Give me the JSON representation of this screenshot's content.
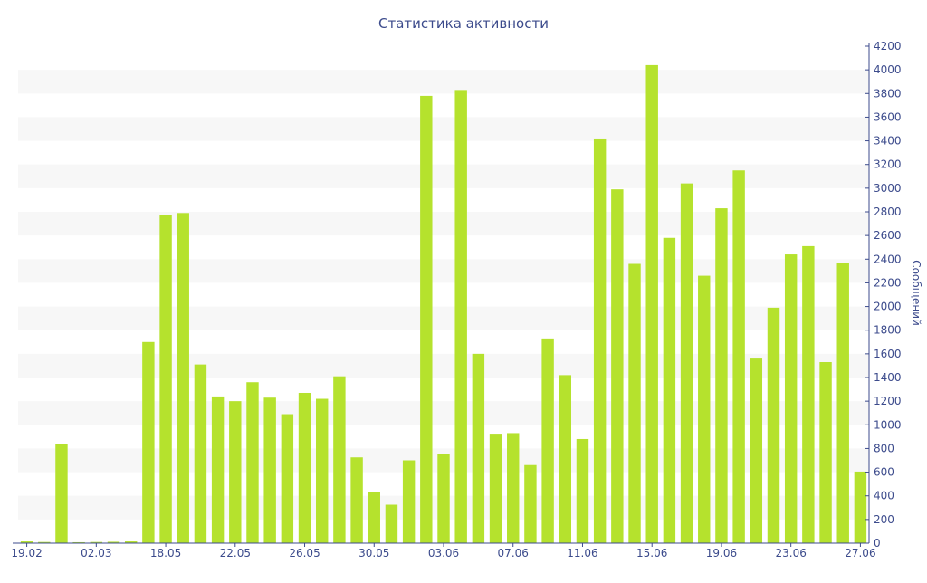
{
  "chart_data": {
    "type": "bar",
    "title": "Статистика активности",
    "ylabel": "Сообщений",
    "xlabel": "",
    "ylim": [
      0,
      4200
    ],
    "y_axis_side": "right",
    "y_ticks": [
      0,
      200,
      400,
      600,
      800,
      1000,
      1200,
      1400,
      1600,
      1800,
      2000,
      2200,
      2400,
      2600,
      2800,
      3000,
      3200,
      3400,
      3600,
      3800,
      4000,
      4200
    ],
    "x_tick_labels": [
      "19.02",
      "02.03",
      "18.05",
      "22.05",
      "26.05",
      "30.05",
      "03.06",
      "07.06",
      "11.06",
      "15.06",
      "19.06",
      "23.06",
      "27.06"
    ],
    "x_tick_positions": [
      0,
      4,
      8,
      12,
      16,
      20,
      24,
      28,
      32,
      36,
      40,
      44,
      48
    ],
    "values": [
      15,
      10,
      840,
      8,
      10,
      12,
      15,
      1700,
      2770,
      2790,
      1510,
      1240,
      1200,
      1360,
      1230,
      1090,
      1270,
      1220,
      1410,
      725,
      435,
      325,
      700,
      3780,
      755,
      3830,
      1600,
      925,
      930,
      660,
      1730,
      1420,
      880,
      3420,
      2990,
      2360,
      4040,
      2580,
      3040,
      2260,
      2830,
      3150,
      1560,
      1990,
      2440,
      2510,
      1530,
      2370,
      605
    ],
    "bar_color": "#b5e22d",
    "title_color": "#3c4b8c",
    "axis_color": "#3c4b8c",
    "band_color": "#f7f7f7",
    "grid": true,
    "legend": "none"
  }
}
